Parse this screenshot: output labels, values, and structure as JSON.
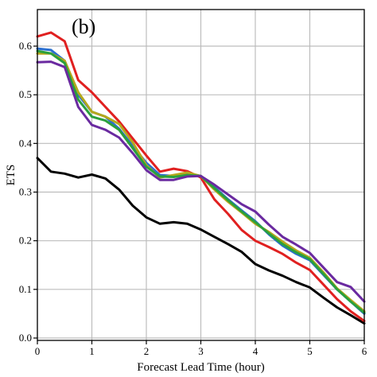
{
  "chart_data": {
    "type": "line",
    "panel_label": "(b)",
    "xlabel": "Forecast Lead Time (hour)",
    "ylabel": "ETS",
    "xlim": [
      0,
      6
    ],
    "ylim": [
      0,
      0.65
    ],
    "xticks": [
      0,
      1,
      2,
      3,
      4,
      5,
      6
    ],
    "yticks": [
      0.0,
      0.1,
      0.2,
      0.3,
      0.4,
      0.5,
      0.6
    ],
    "grid": true,
    "x": [
      0,
      0.25,
      0.5,
      0.75,
      1,
      1.25,
      1.5,
      1.75,
      2,
      2.25,
      2.5,
      2.75,
      3,
      3.25,
      3.5,
      3.75,
      4,
      4.25,
      4.5,
      4.75,
      5,
      5.25,
      5.5,
      5.75,
      6
    ],
    "series": [
      {
        "color": "#000000",
        "values": [
          0.37,
          0.342,
          0.338,
          0.33,
          0.336,
          0.328,
          0.305,
          0.272,
          0.248,
          0.235,
          0.238,
          0.235,
          0.223,
          0.208,
          0.193,
          0.177,
          0.152,
          0.139,
          0.128,
          0.115,
          0.104,
          0.083,
          0.063,
          0.047,
          0.03
        ]
      },
      {
        "color": "#e02020",
        "values": [
          0.62,
          0.628,
          0.61,
          0.53,
          0.505,
          0.475,
          0.445,
          0.41,
          0.375,
          0.342,
          0.348,
          0.343,
          0.33,
          0.285,
          0.255,
          0.222,
          0.2,
          0.187,
          0.173,
          0.155,
          0.14,
          0.11,
          0.08,
          0.055,
          0.035
        ]
      },
      {
        "color": "#2a6fd0",
        "values": [
          0.595,
          0.592,
          0.57,
          0.5,
          0.465,
          0.455,
          0.43,
          0.395,
          0.36,
          0.335,
          0.333,
          0.337,
          0.333,
          0.31,
          0.285,
          0.262,
          0.24,
          0.213,
          0.19,
          0.173,
          0.16,
          0.13,
          0.1,
          0.075,
          0.05
        ]
      },
      {
        "color": "#b5a81c",
        "values": [
          0.585,
          0.585,
          0.57,
          0.505,
          0.465,
          0.455,
          0.44,
          0.402,
          0.355,
          0.33,
          0.335,
          0.34,
          0.333,
          0.305,
          0.28,
          0.258,
          0.235,
          0.218,
          0.198,
          0.18,
          0.165,
          0.135,
          0.102,
          0.078,
          0.055
        ]
      },
      {
        "color": "#2aa03c",
        "values": [
          0.59,
          0.585,
          0.565,
          0.49,
          0.455,
          0.447,
          0.428,
          0.39,
          0.352,
          0.332,
          0.331,
          0.335,
          0.333,
          0.308,
          0.283,
          0.26,
          0.238,
          0.215,
          0.193,
          0.176,
          0.162,
          0.132,
          0.1,
          0.075,
          0.052
        ]
      },
      {
        "color": "#6a2aa0",
        "values": [
          0.567,
          0.568,
          0.557,
          0.475,
          0.438,
          0.428,
          0.412,
          0.38,
          0.345,
          0.325,
          0.325,
          0.332,
          0.333,
          0.315,
          0.295,
          0.275,
          0.26,
          0.233,
          0.208,
          0.192,
          0.175,
          0.145,
          0.115,
          0.105,
          0.075
        ]
      }
    ]
  }
}
